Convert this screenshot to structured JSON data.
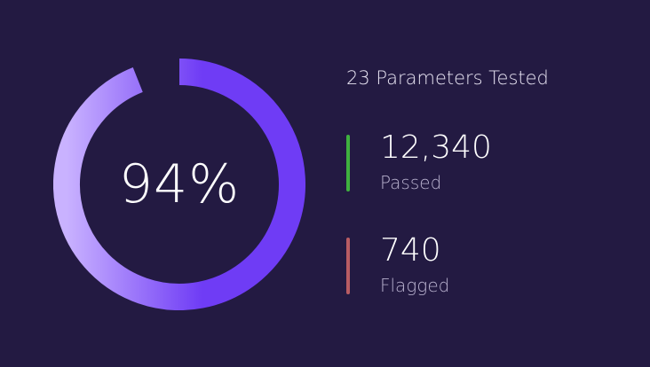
{
  "chart_data": {
    "type": "pie",
    "variant": "donut-gauge",
    "value_percent": 94,
    "center_label": "94%",
    "gradient_colors": [
      "#c9b2ff",
      "#6f3cf5"
    ],
    "track_color": "#231a42"
  },
  "summary": {
    "text": "23 Parameters Tested"
  },
  "stats": [
    {
      "value": "12,340",
      "label": "Passed",
      "color": "#3fb13f"
    },
    {
      "value": "740",
      "label": "Flagged",
      "color": "#b85c63"
    }
  ]
}
